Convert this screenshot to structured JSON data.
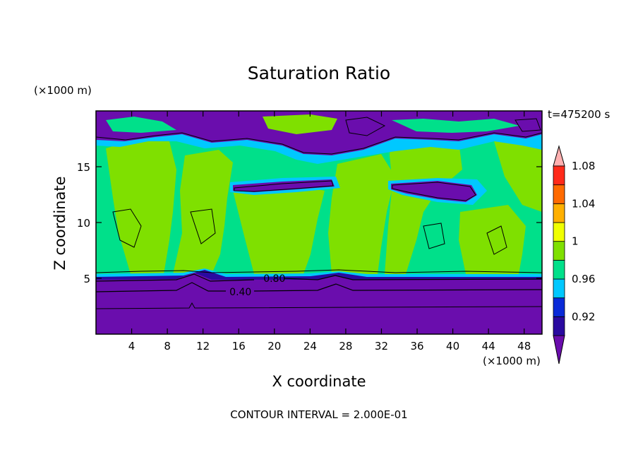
{
  "chart_data": {
    "type": "contour",
    "title": "Saturation Ratio",
    "xlabel": "X coordinate",
    "ylabel": "Z coordinate",
    "x_unit": "(×1000 m)",
    "y_unit": "(×1000 m)",
    "time_label": "t=475200 s",
    "footer": "CONTOUR INTERVAL = 2.000E-01",
    "xlim": [
      0,
      50
    ],
    "ylim": [
      0,
      20
    ],
    "x_ticks": [
      4,
      8,
      12,
      16,
      20,
      24,
      28,
      32,
      36,
      40,
      44,
      48
    ],
    "y_ticks": [
      5,
      10,
      15
    ],
    "contour_interval": 0.2,
    "contour_labels": [
      {
        "text": "0.80",
        "x": 20,
        "y": 5
      },
      {
        "text": "0.40",
        "x": 16.2,
        "y": 3.8
      }
    ],
    "colorbar": {
      "tick_labels": [
        "1.08",
        "1.04",
        "1",
        "0.96",
        "0.92"
      ],
      "colors": [
        "#6a0dad",
        "#2a0aa0",
        "#0a2ad8",
        "#00c8ff",
        "#00e08a",
        "#7fe000",
        "#f0ff00",
        "#ffb000",
        "#ff6a00",
        "#ff2a1a",
        "#ffb0b0"
      ],
      "extend": "both"
    },
    "fields": {
      "lower_layer": "#6a0dad",
      "lower_band": "#2a0aa0",
      "moist_green": "#00e08a",
      "lime_green": "#7fe000",
      "cyan_edge": "#00c8ff",
      "dry_purple": "#6a0dad"
    }
  }
}
